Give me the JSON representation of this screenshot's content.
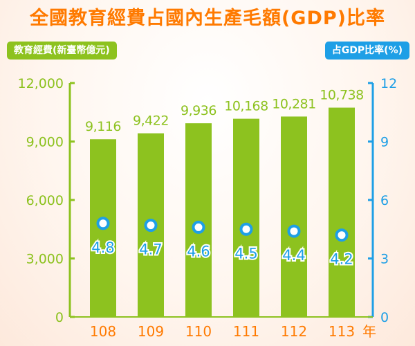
{
  "header": {
    "title": "全國教育經費占國內生產毛額(GDP)比率"
  },
  "legend": {
    "left_label": "教育經費(新臺幣億元)",
    "right_label": "占GDP比率(%)"
  },
  "colors": {
    "bar": "#8dc21f",
    "line": "#1e9fe6",
    "category": "#ff7a00"
  },
  "chart_data": {
    "type": "bar",
    "title": "全國教育經費占國內生產毛額(GDP)比率",
    "categories": [
      "108",
      "109",
      "110",
      "111",
      "112",
      "113"
    ],
    "x_unit": "年",
    "series": [
      {
        "name": "教育經費(新臺幣億元)",
        "type": "bar",
        "axis": "left",
        "values": [
          9116,
          9422,
          9936,
          10168,
          10281,
          10738
        ],
        "labels": [
          "9,116",
          "9,422",
          "9,936",
          "10,168",
          "10,281",
          "10,738"
        ]
      },
      {
        "name": "占GDP比率(%)",
        "type": "scatter",
        "axis": "right",
        "values": [
          4.8,
          4.7,
          4.6,
          4.5,
          4.4,
          4.2
        ],
        "labels": [
          "4.8",
          "4.7",
          "4.6",
          "4.5",
          "4.4",
          "4.2"
        ]
      }
    ],
    "y_left": {
      "ylim": [
        0,
        12000
      ],
      "ticks": [
        0,
        3000,
        6000,
        9000,
        12000
      ],
      "tick_labels": [
        "0",
        "3,000",
        "6,000",
        "9,000",
        "12,000"
      ]
    },
    "y_right": {
      "ylim": [
        0,
        12
      ],
      "ticks": [
        0,
        3,
        6,
        9,
        12
      ],
      "tick_labels": [
        "0",
        "3",
        "6",
        "9",
        "12"
      ]
    },
    "grid": false
  }
}
